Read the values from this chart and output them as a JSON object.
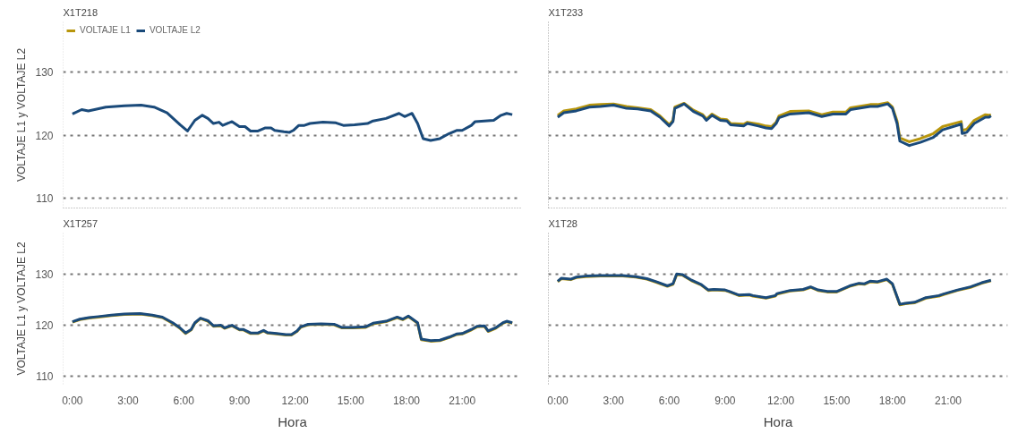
{
  "chart_data": [
    {
      "type": "line",
      "title": "X1T218",
      "ylabel": "VOLTAJE L1 y VOLTAJE L2",
      "legend": "top left",
      "grid": "y",
      "tick_labels": "y",
      "line_style": "solid",
      "xlim": [
        -0.5,
        24.2
      ],
      "ylim": [
        108.5,
        138
      ],
      "yticks": [
        110,
        120,
        130
      ],
      "x": [
        0,
        0.5,
        0.86,
        1.8,
        2.8,
        3.7,
        4.4,
        5.1,
        5.8,
        6.2,
        6.6,
        7.0,
        7.3,
        7.6,
        7.9,
        8.1,
        8.6,
        9.0,
        9.3,
        9.6,
        10.0,
        10.4,
        10.7,
        10.9,
        11.4,
        11.7,
        11.9,
        12.2,
        12.5,
        12.8,
        13.5,
        14.2,
        14.6,
        15.2,
        15.9,
        16.2,
        16.9,
        17.6,
        17.9,
        18.3,
        18.6,
        18.9,
        19.3,
        19.8,
        20.3,
        20.7,
        21.0,
        21.5,
        21.7,
        22.7,
        23.1,
        23.4,
        23.7
      ],
      "series": [
        {
          "name": "VOLTAJE L1",
          "color": "#b8960c",
          "values": [
            null,
            null,
            null,
            null,
            null,
            null,
            null,
            null,
            null,
            null,
            null,
            null,
            null,
            null,
            null,
            null,
            null,
            null,
            null,
            null,
            null,
            null,
            null,
            null,
            null,
            null,
            null,
            null,
            null,
            null,
            null,
            null,
            null,
            null,
            null,
            null,
            null,
            null,
            null,
            null,
            null,
            null,
            null,
            null,
            null,
            null,
            null,
            null,
            null,
            null,
            null,
            null,
            null
          ]
        },
        {
          "name": "VOLTAJE L2",
          "color": "#1a4a7a",
          "values": [
            123.4,
            124.1,
            123.9,
            124.5,
            124.7,
            124.8,
            124.5,
            123.6,
            121.7,
            120.7,
            122.4,
            123.2,
            122.7,
            121.9,
            122.1,
            121.6,
            122.2,
            121.4,
            121.4,
            120.7,
            120.7,
            121.2,
            121.2,
            120.8,
            120.6,
            120.5,
            120.8,
            121.6,
            121.6,
            121.9,
            122.1,
            122.0,
            121.6,
            121.7,
            121.9,
            122.3,
            122.7,
            123.5,
            123.0,
            123.5,
            121.9,
            119.5,
            119.2,
            119.5,
            120.3,
            120.8,
            120.8,
            121.6,
            122.2,
            122.4,
            123.2,
            123.5,
            123.3
          ]
        }
      ]
    },
    {
      "type": "line",
      "title": "X1T233",
      "grid": "y",
      "tick_labels": false,
      "line_style": "solid",
      "xlim": [
        -0.5,
        24.2
      ],
      "ylim": [
        108.5,
        138
      ],
      "yticks": [
        110,
        120,
        130
      ],
      "x": [
        0,
        0.33,
        1.0,
        1.7,
        2.3,
        3.0,
        3.7,
        4.3,
        5.0,
        5.5,
        6.0,
        6.2,
        6.3,
        6.8,
        7.3,
        7.8,
        8.0,
        8.3,
        8.75,
        9.1,
        9.3,
        10.0,
        10.2,
        10.8,
        11.2,
        11.5,
        11.75,
        11.9,
        12.5,
        13.5,
        14.2,
        14.8,
        15.5,
        15.75,
        16.8,
        17.2,
        17.75,
        18.0,
        18.25,
        18.4,
        18.9,
        19.5,
        20.2,
        20.7,
        21.7,
        21.75,
        22.0,
        22.4,
        23.0,
        23.2,
        23.3
      ],
      "series": [
        {
          "color": "#b8960c",
          "values": [
            123.2,
            123.9,
            124.2,
            124.8,
            124.9,
            125.0,
            124.6,
            124.4,
            124.1,
            123.1,
            121.7,
            122.4,
            124.5,
            125.1,
            124.0,
            123.3,
            122.6,
            123.4,
            122.6,
            122.5,
            121.9,
            121.8,
            122.1,
            121.8,
            121.5,
            121.4,
            122.1,
            123.1,
            123.8,
            123.9,
            123.3,
            123.7,
            123.7,
            124.4,
            124.9,
            124.9,
            125.2,
            124.5,
            122.3,
            119.6,
            119.0,
            119.5,
            120.3,
            121.4,
            122.2,
            120.8,
            121.0,
            122.4,
            123.3,
            123.2,
            123.3
          ]
        },
        {
          "color": "#1a4a7a",
          "values": [
            122.9,
            123.6,
            123.9,
            124.5,
            124.6,
            124.8,
            124.3,
            124.2,
            123.9,
            122.9,
            121.5,
            122.2,
            124.3,
            125.0,
            123.8,
            123.1,
            122.4,
            123.2,
            122.4,
            122.3,
            121.7,
            121.5,
            121.9,
            121.5,
            121.2,
            121.1,
            121.9,
            122.8,
            123.4,
            123.6,
            123.0,
            123.4,
            123.4,
            124.1,
            124.6,
            124.6,
            125.0,
            124.3,
            121.9,
            119.1,
            118.4,
            118.9,
            119.7,
            120.9,
            121.8,
            120.3,
            120.5,
            121.9,
            122.9,
            122.9,
            123.1
          ]
        }
      ]
    },
    {
      "type": "line",
      "title": "X1T257",
      "xlabel": "Hora",
      "ylabel": "VOLTAJE L1 y VOLTAJE L2",
      "grid": "y",
      "line_style": "solid",
      "xlim": [
        -0.5,
        24.2
      ],
      "ylim": [
        108.5,
        138
      ],
      "yticks": [
        110,
        120,
        130
      ],
      "xticks": [
        {
          "value": 0,
          "label": "0:00"
        },
        {
          "value": 3,
          "label": "3:00"
        },
        {
          "value": 6,
          "label": "6:00"
        },
        {
          "value": 9,
          "label": "9:00"
        },
        {
          "value": 12,
          "label": "12:00"
        },
        {
          "value": 15,
          "label": "15:00"
        },
        {
          "value": 18,
          "label": "18:00"
        },
        {
          "value": 21,
          "label": "21:00"
        }
      ],
      "x": [
        0,
        0.4,
        0.9,
        1.4,
        2.1,
        2.8,
        3.65,
        4.3,
        4.85,
        5.4,
        5.8,
        6.1,
        6.4,
        6.6,
        6.9,
        7.3,
        7.6,
        8.0,
        8.2,
        8.6,
        9.0,
        9.2,
        9.6,
        10.0,
        10.3,
        10.5,
        11.0,
        11.5,
        11.8,
        12.1,
        12.3,
        12.7,
        13.4,
        14.1,
        14.5,
        15.1,
        15.8,
        16.2,
        16.9,
        17.5,
        17.8,
        18.1,
        18.6,
        18.8,
        19.3,
        19.8,
        20.3,
        20.7,
        21.0,
        21.5,
        21.8,
        22.2,
        22.4,
        22.8,
        23.2,
        23.4,
        23.7
      ],
      "series": [
        {
          "color": "#b8960c",
          "values": [
            120.6,
            121.1,
            121.4,
            121.6,
            121.9,
            122.1,
            122.2,
            121.9,
            121.5,
            120.4,
            119.4,
            118.4,
            119.1,
            120.4,
            121.3,
            120.8,
            119.8,
            119.9,
            119.4,
            119.9,
            119.1,
            119.1,
            118.4,
            118.4,
            118.9,
            118.5,
            118.3,
            118.1,
            118.1,
            118.8,
            119.6,
            120.1,
            120.2,
            120.1,
            119.5,
            119.5,
            119.6,
            120.3,
            120.7,
            121.5,
            121.1,
            121.7,
            120.4,
            117.2,
            116.9,
            117.0,
            117.6,
            118.2,
            118.3,
            119.1,
            119.7,
            119.8,
            118.8,
            119.4,
            120.4,
            120.7,
            120.4
          ]
        },
        {
          "color": "#1a4a7a",
          "values": [
            120.7,
            121.2,
            121.5,
            121.7,
            122.0,
            122.2,
            122.3,
            122.0,
            121.6,
            120.5,
            119.5,
            118.5,
            119.2,
            120.5,
            121.4,
            120.9,
            119.9,
            120.0,
            119.5,
            120.0,
            119.2,
            119.2,
            118.5,
            118.5,
            119.0,
            118.6,
            118.4,
            118.2,
            118.2,
            118.9,
            119.7,
            120.2,
            120.3,
            120.2,
            119.6,
            119.6,
            119.7,
            120.4,
            120.8,
            121.6,
            121.2,
            121.8,
            120.5,
            117.3,
            117.0,
            117.1,
            117.7,
            118.3,
            118.4,
            119.2,
            119.8,
            119.9,
            118.9,
            119.5,
            120.5,
            120.8,
            120.5
          ]
        }
      ]
    },
    {
      "type": "line",
      "title": "X1T28",
      "xlabel": "Hora",
      "grid": "y",
      "tick_labels": "x",
      "line_style": "solid",
      "xlim": [
        -0.5,
        24.2
      ],
      "ylim": [
        108.5,
        138
      ],
      "yticks": [
        110,
        120,
        130
      ],
      "xticks": [
        {
          "value": 0,
          "label": "0:00"
        },
        {
          "value": 3,
          "label": "3:00"
        },
        {
          "value": 6,
          "label": "6:00"
        },
        {
          "value": 9,
          "label": "9:00"
        },
        {
          "value": 12,
          "label": "12:00"
        },
        {
          "value": 15,
          "label": "15:00"
        },
        {
          "value": 18,
          "label": "18:00"
        },
        {
          "value": 21,
          "label": "21:00"
        }
      ],
      "x": [
        0,
        0.2,
        0.7,
        1.0,
        1.5,
        2.3,
        3.5,
        4.2,
        4.8,
        5.3,
        5.9,
        6.2,
        6.4,
        6.7,
        7.2,
        7.7,
        8.1,
        8.4,
        9.0,
        9.25,
        9.75,
        10.3,
        10.5,
        11.2,
        11.7,
        11.8,
        12.5,
        13.2,
        13.6,
        14.0,
        14.5,
        15.0,
        15.7,
        16.2,
        16.5,
        16.8,
        17.2,
        17.7,
        18.0,
        18.4,
        18.7,
        19.2,
        19.8,
        20.5,
        20.75,
        21.5,
        22.2,
        22.8,
        23.3
      ],
      "series": [
        {
          "color": "#b8960c",
          "values": [
            128.5,
            129.1,
            128.9,
            129.3,
            129.5,
            129.6,
            129.6,
            129.4,
            129.0,
            128.4,
            127.6,
            128.0,
            129.9,
            129.8,
            128.7,
            127.9,
            126.8,
            126.9,
            126.8,
            126.5,
            125.8,
            125.9,
            125.7,
            125.3,
            125.7,
            126.1,
            126.7,
            126.9,
            127.4,
            126.8,
            126.5,
            126.5,
            127.6,
            128.1,
            128.0,
            128.5,
            128.4,
            128.9,
            128.0,
            124.0,
            124.2,
            124.4,
            125.3,
            125.7,
            126.0,
            126.8,
            127.4,
            128.2,
            128.7
          ]
        },
        {
          "color": "#1a4a7a",
          "values": [
            128.6,
            129.2,
            129.0,
            129.4,
            129.6,
            129.7,
            129.7,
            129.5,
            129.1,
            128.5,
            127.7,
            128.1,
            130.0,
            129.9,
            128.8,
            128.0,
            126.9,
            127.0,
            126.9,
            126.6,
            125.9,
            126.0,
            125.8,
            125.4,
            125.8,
            126.2,
            126.8,
            127.0,
            127.5,
            126.9,
            126.6,
            126.6,
            127.7,
            128.2,
            128.1,
            128.6,
            128.5,
            129.0,
            128.1,
            124.1,
            124.3,
            124.5,
            125.4,
            125.8,
            126.1,
            126.9,
            127.5,
            128.3,
            128.8
          ]
        }
      ]
    }
  ]
}
